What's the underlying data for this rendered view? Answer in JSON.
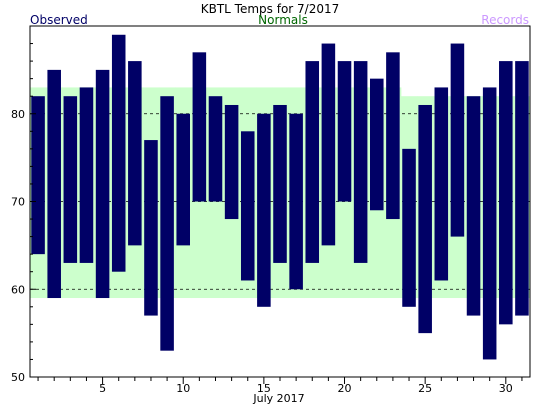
{
  "chart_data": {
    "type": "bar",
    "title": "KBTL Temps for 7/2017",
    "xlabel": "July 2017",
    "ylabel": "",
    "legend": {
      "observed": "Observed",
      "normals": "Normals",
      "records": "Records"
    },
    "colors": {
      "observed": "#000066",
      "normals": "#ccffcc",
      "normals_label": "#006600",
      "records": "#cc99ff",
      "observed_label": "#000066"
    },
    "xlim": [
      0.5,
      31.5
    ],
    "ylim": [
      50,
      90
    ],
    "xticks": [
      5,
      10,
      15,
      20,
      25,
      30
    ],
    "yticks": [
      50,
      60,
      70,
      80
    ],
    "grid_y": [
      60,
      70,
      80
    ],
    "days": [
      1,
      2,
      3,
      4,
      5,
      6,
      7,
      8,
      9,
      10,
      11,
      12,
      13,
      14,
      15,
      16,
      17,
      18,
      19,
      20,
      21,
      22,
      23,
      24,
      25,
      26,
      27,
      28,
      29,
      30,
      31
    ],
    "series": [
      {
        "name": "Observed",
        "high": [
          82,
          85,
          82,
          83,
          85,
          89,
          86,
          77,
          82,
          80,
          87,
          82,
          81,
          78,
          80,
          81,
          80,
          86,
          88,
          86,
          86,
          84,
          87,
          76,
          81,
          83,
          88,
          82,
          83,
          86,
          86
        ],
        "low": [
          64,
          59,
          63,
          63,
          59,
          62,
          65,
          57,
          53,
          65,
          70,
          70,
          68,
          61,
          58,
          63,
          60,
          63,
          65,
          70,
          63,
          69,
          68,
          58,
          55,
          61,
          66,
          57,
          52,
          56,
          57
        ]
      },
      {
        "name": "Normals",
        "high": [
          83,
          83,
          83,
          83,
          83,
          83,
          83,
          83,
          83,
          83,
          83,
          83,
          83,
          83,
          83,
          83,
          83,
          83,
          83,
          83,
          83,
          83,
          83,
          82,
          82,
          82,
          82,
          82,
          82,
          82,
          82
        ],
        "low": [
          59,
          59,
          59,
          59,
          59,
          59,
          59,
          59,
          59,
          59,
          59,
          59,
          59,
          59,
          59,
          59,
          59,
          59,
          59,
          59,
          59,
          59,
          59,
          59,
          59,
          59,
          59,
          59,
          59,
          59,
          59
        ]
      }
    ]
  }
}
